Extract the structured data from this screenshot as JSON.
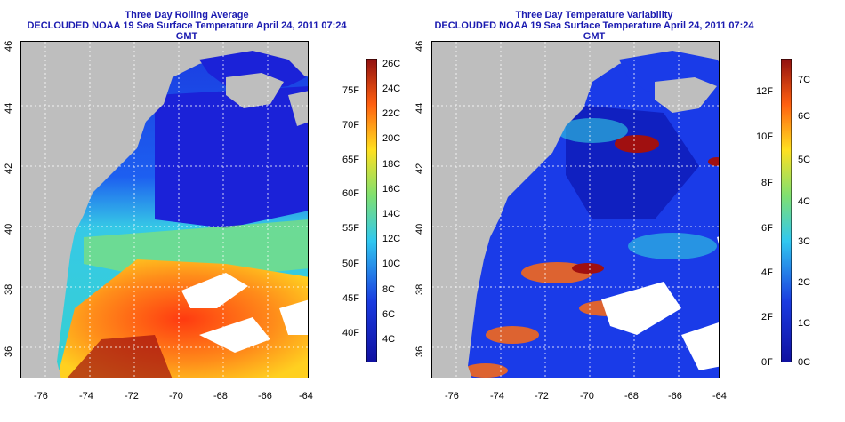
{
  "left": {
    "title_line1": "Three Day Rolling Average",
    "title_line2": "DECLOUDED NOAA 19 Sea Surface Temperature April 24, 2011 07:24 GMT",
    "colorbar_f": [
      "75F",
      "70F",
      "65F",
      "60F",
      "55F",
      "50F",
      "45F",
      "40F"
    ],
    "colorbar_c": [
      "26C",
      "24C",
      "22C",
      "20C",
      "18C",
      "16C",
      "14C",
      "12C",
      "10C",
      "8C",
      "6C",
      "4C"
    ]
  },
  "right": {
    "title_line1": "Three Day Temperature Variability",
    "title_line2": "DECLOUDED NOAA 19 Sea Surface Temperature April 24, 2011 07:24 GMT",
    "colorbar_f": [
      "12F",
      "10F",
      "8F",
      "6F",
      "4F",
      "2F",
      "0F"
    ],
    "colorbar_c": [
      "7C",
      "6C",
      "5C",
      "4C",
      "3C",
      "2C",
      "1C",
      "0C"
    ]
  },
  "axes": {
    "lon": [
      "-76",
      "-74",
      "-72",
      "-70",
      "-68",
      "-66",
      "-64"
    ],
    "lat": [
      "36",
      "38",
      "40",
      "42",
      "44",
      "46"
    ]
  },
  "colors": {
    "title": "#1a1ab0",
    "land": "#bebebe",
    "cloud": "#ffffff"
  }
}
